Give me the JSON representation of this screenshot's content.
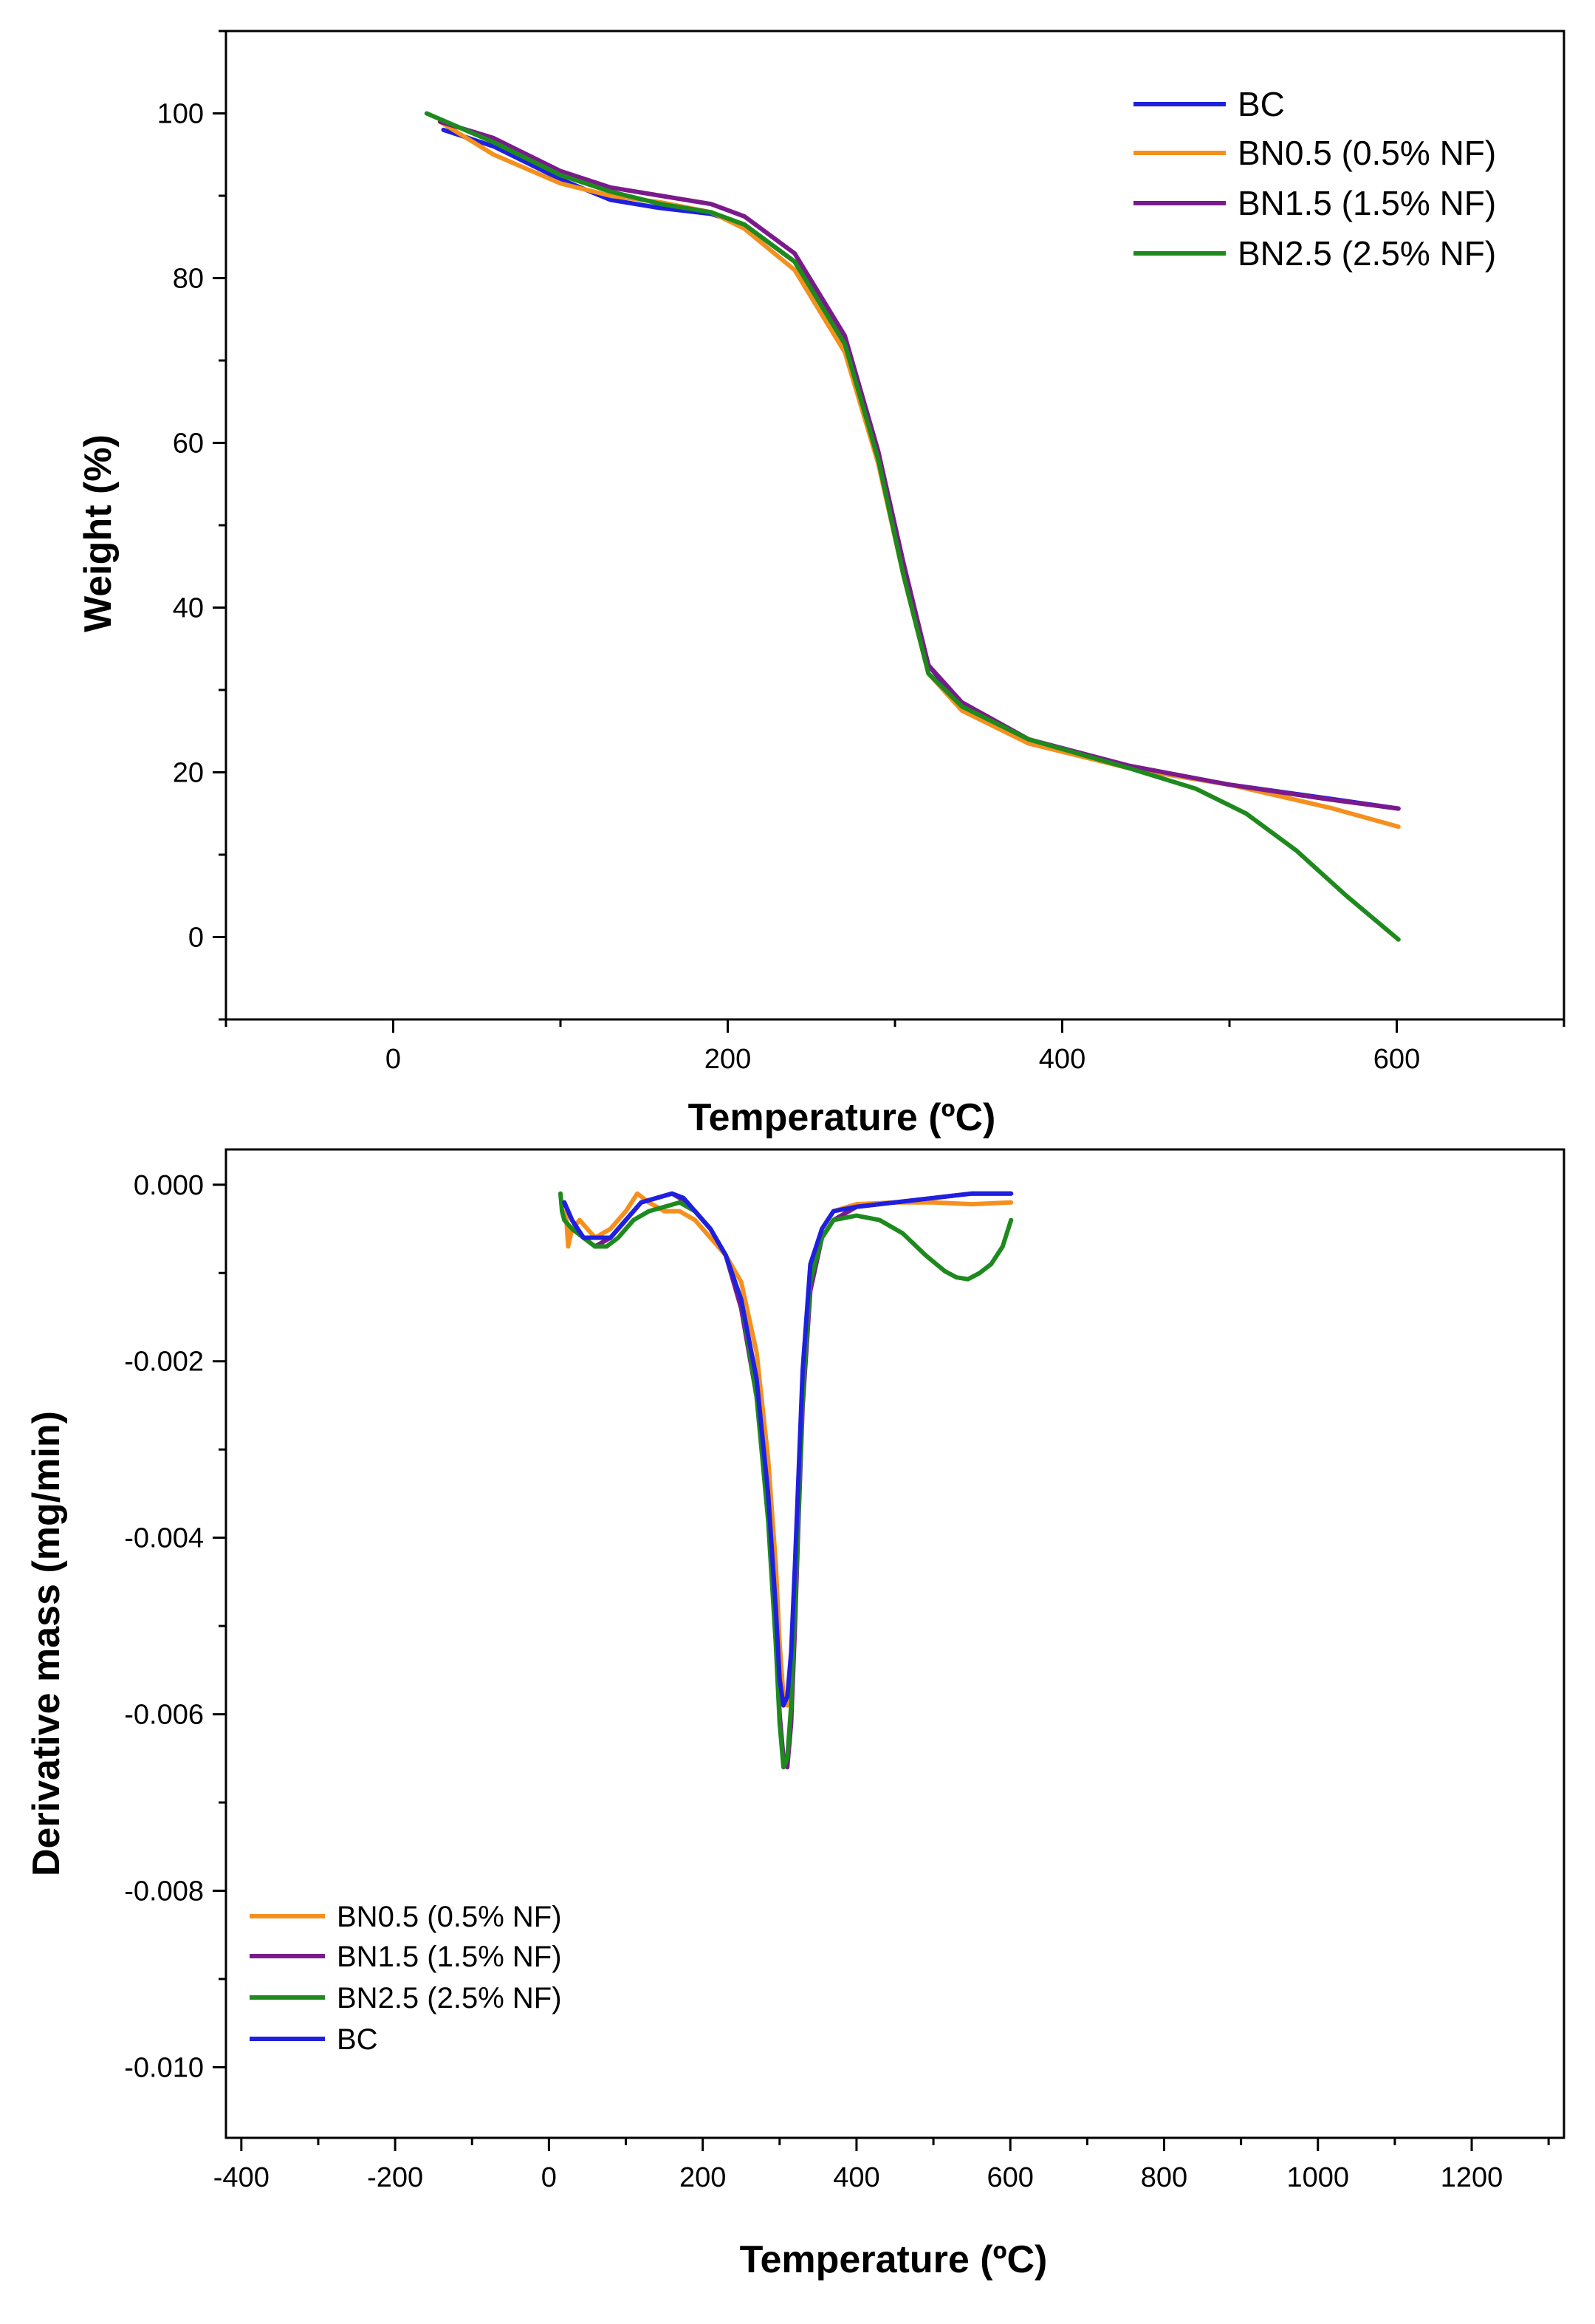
{
  "colors": {
    "BC": "#1f1fe0",
    "BN0.5": "#f5901e",
    "BN1.5": "#7a1a8c",
    "BN2.5": "#1e8a1e",
    "axis": "#000000"
  },
  "chart_data": [
    {
      "type": "line",
      "title": "",
      "xlabel": "Temperature (ºC)",
      "ylabel": "Weight (%)",
      "xlim": [
        -100,
        700
      ],
      "ylim": [
        -10,
        110
      ],
      "xticks": [
        0,
        200,
        400,
        600
      ],
      "yticks": [
        0,
        20,
        40,
        60,
        80,
        100
      ],
      "xtick_labels": [
        "0",
        "200",
        "400",
        "600"
      ],
      "ytick_labels": [
        "0",
        "20",
        "40",
        "60",
        "80",
        "100"
      ],
      "legend_position": "top-right",
      "legend": [
        "BC",
        "BN0.5 (0.5% NF)",
        "BN1.5 (1.5% NF)",
        "BN2.5 (2.5% NF)"
      ],
      "series": [
        {
          "name": "BC",
          "key": "BC",
          "x": [
            30,
            60,
            100,
            130,
            160,
            190,
            210,
            240,
            270,
            290,
            305,
            320,
            340,
            380,
            440,
            500,
            560,
            601
          ],
          "y": [
            98,
            96,
            92,
            89.5,
            88.5,
            87.8,
            86.5,
            82,
            72,
            58,
            45,
            33,
            28,
            24,
            20.5,
            18.5,
            16.8,
            15.6
          ]
        },
        {
          "name": "BN0.5 (0.5% NF)",
          "key": "BN0.5",
          "x": [
            28,
            60,
            100,
            130,
            160,
            190,
            210,
            240,
            270,
            290,
            305,
            320,
            340,
            380,
            440,
            500,
            560,
            601
          ],
          "y": [
            99,
            95,
            91.5,
            90,
            89.2,
            88,
            86,
            81,
            71,
            57.5,
            44,
            32,
            27.5,
            23.5,
            20.5,
            18.5,
            15.7,
            13.4
          ]
        },
        {
          "name": "BN1.5 (1.5% NF)",
          "key": "BN1.5",
          "x": [
            28,
            60,
            100,
            130,
            160,
            190,
            210,
            240,
            270,
            290,
            305,
            320,
            340,
            380,
            440,
            500,
            560,
            601
          ],
          "y": [
            99,
            97,
            93,
            91,
            90,
            89,
            87.5,
            83,
            73,
            59,
            45.5,
            33,
            28.5,
            24,
            20.8,
            18.5,
            16.7,
            15.6
          ]
        },
        {
          "name": "BN2.5 (2.5% NF)",
          "key": "BN2.5",
          "x": [
            20,
            60,
            100,
            130,
            160,
            190,
            210,
            240,
            270,
            290,
            305,
            320,
            340,
            380,
            440,
            480,
            510,
            540,
            570,
            601
          ],
          "y": [
            100,
            96.5,
            92.5,
            90.5,
            89,
            88,
            86.5,
            82,
            72,
            58,
            44,
            32,
            28,
            24,
            20.5,
            18,
            15,
            10.5,
            5,
            -0.3
          ]
        }
      ]
    },
    {
      "type": "line",
      "title": "",
      "xlabel": "Temperature (ºC)",
      "ylabel": "Derivative mass (mg/min)",
      "xlim": [
        -420,
        1320
      ],
      "ylim": [
        -0.0108,
        0.0004
      ],
      "xticks": [
        -400,
        -200,
        0,
        200,
        400,
        600,
        800,
        1000,
        1200
      ],
      "yticks": [
        0.0,
        -0.002,
        -0.004,
        -0.006,
        -0.008,
        -0.01
      ],
      "xtick_labels": [
        "-400",
        "-200",
        "0",
        "200",
        "400",
        "600",
        "800",
        "1000",
        "1200"
      ],
      "ytick_labels": [
        "0.000",
        "-0.002",
        "-0.004",
        "-0.006",
        "-0.008",
        "-0.010"
      ],
      "legend_position": "bottom-left",
      "legend": [
        "BN0.5 (0.5% NF)",
        "BN1.5 (1.5% NF)",
        "BN2.5 (2.5% NF)",
        "BC"
      ],
      "series": [
        {
          "name": "BN0.5 (0.5% NF)",
          "key": "BN0.5",
          "x": [
            22,
            25,
            30,
            40,
            60,
            80,
            100,
            115,
            130,
            150,
            170,
            190,
            210,
            230,
            250,
            270,
            285,
            295,
            300,
            305,
            310,
            315,
            320,
            325,
            330,
            340,
            355,
            370,
            400,
            450,
            500,
            550,
            601
          ],
          "y": [
            -0.0003,
            -0.0007,
            -0.0005,
            -0.0004,
            -0.0006,
            -0.0005,
            -0.0003,
            -0.0001,
            -0.0002,
            -0.0003,
            -0.0003,
            -0.0004,
            -0.0006,
            -0.0008,
            -0.0011,
            -0.0019,
            -0.0031,
            -0.0043,
            -0.0052,
            -0.0058,
            -0.0059,
            -0.0055,
            -0.0045,
            -0.0034,
            -0.0022,
            -0.001,
            -0.0005,
            -0.0003,
            -0.00022,
            -0.0002,
            -0.0002,
            -0.00022,
            -0.0002
          ]
        },
        {
          "name": "BN1.5 (1.5% NF)",
          "key": "BN1.5",
          "x": [
            20,
            30,
            45,
            60,
            80,
            100,
            120,
            140,
            160,
            170,
            190,
            210,
            230,
            250,
            270,
            285,
            295,
            300,
            305,
            310,
            315,
            320,
            325,
            330,
            340,
            355,
            370,
            400,
            450,
            500,
            550,
            601
          ],
          "y": [
            -0.0002,
            -0.0004,
            -0.0006,
            -0.0007,
            -0.0006,
            -0.0004,
            -0.0002,
            -0.00015,
            -0.0001,
            -0.00015,
            -0.0003,
            -0.0005,
            -0.0008,
            -0.0014,
            -0.0024,
            -0.0037,
            -0.0051,
            -0.006,
            -0.0065,
            -0.0066,
            -0.0061,
            -0.005,
            -0.0037,
            -0.0025,
            -0.0012,
            -0.0006,
            -0.0004,
            -0.00025,
            -0.0002,
            -0.00015,
            -0.0001,
            -0.0001
          ]
        },
        {
          "name": "BN2.5 (2.5% NF)",
          "key": "BN2.5",
          "x": [
            15,
            17,
            20,
            30,
            45,
            60,
            75,
            90,
            110,
            130,
            150,
            170,
            190,
            210,
            230,
            250,
            270,
            285,
            295,
            300,
            305,
            310,
            315,
            320,
            325,
            330,
            340,
            355,
            370,
            400,
            430,
            460,
            490,
            515,
            530,
            545,
            560,
            575,
            590,
            601
          ],
          "y": [
            -0.0001,
            -0.0003,
            -0.0004,
            -0.0005,
            -0.0006,
            -0.0007,
            -0.0007,
            -0.0006,
            -0.0004,
            -0.0003,
            -0.00025,
            -0.0002,
            -0.0003,
            -0.0005,
            -0.0008,
            -0.0013,
            -0.0024,
            -0.0038,
            -0.0052,
            -0.0061,
            -0.0066,
            -0.0065,
            -0.0059,
            -0.0048,
            -0.0036,
            -0.0024,
            -0.0011,
            -0.0006,
            -0.0004,
            -0.00035,
            -0.0004,
            -0.00055,
            -0.0008,
            -0.00098,
            -0.00105,
            -0.00107,
            -0.001,
            -0.0009,
            -0.0007,
            -0.0004
          ]
        },
        {
          "name": "BC",
          "key": "BC",
          "x": [
            20,
            30,
            45,
            60,
            80,
            100,
            120,
            140,
            160,
            175,
            190,
            210,
            230,
            250,
            270,
            285,
            295,
            300,
            305,
            310,
            315,
            320,
            325,
            330,
            340,
            355,
            370,
            400,
            450,
            500,
            550,
            601
          ],
          "y": [
            -0.0002,
            -0.0004,
            -0.0006,
            -0.0006,
            -0.0006,
            -0.0004,
            -0.0002,
            -0.00015,
            -0.0001,
            -0.00015,
            -0.0003,
            -0.0005,
            -0.0008,
            -0.0013,
            -0.0022,
            -0.0035,
            -0.0048,
            -0.0056,
            -0.0059,
            -0.0058,
            -0.0053,
            -0.0043,
            -0.0032,
            -0.0021,
            -0.0009,
            -0.0005,
            -0.0003,
            -0.00025,
            -0.0002,
            -0.00015,
            -0.0001,
            -0.0001
          ]
        }
      ]
    }
  ]
}
